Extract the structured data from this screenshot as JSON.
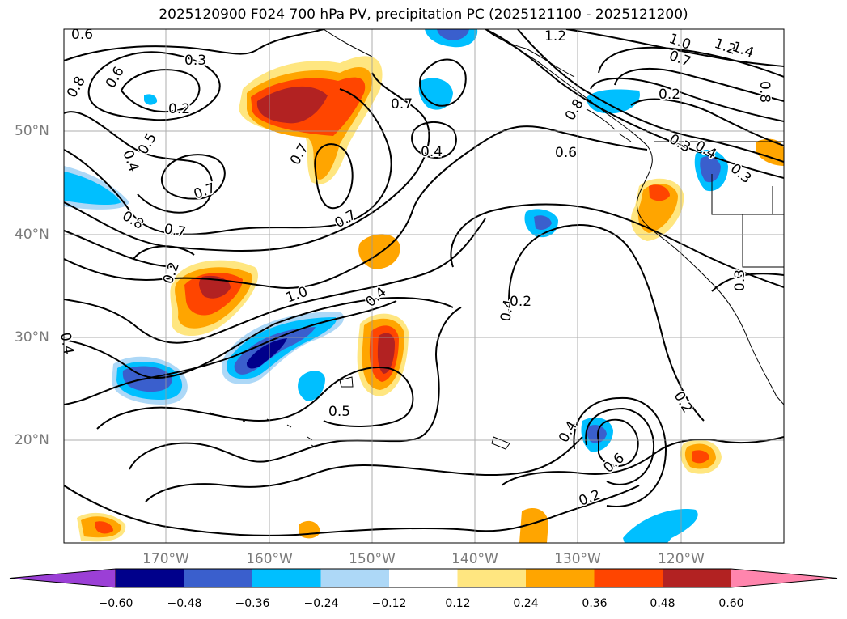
{
  "title": "2025120900 F024 700 hPa PV, precipitation PC (2025121100 - 2025121200)",
  "lat_labels": [
    "50°N",
    "40°N",
    "30°N",
    "20°N"
  ],
  "lon_labels": [
    "170°W",
    "160°W",
    "150°W",
    "140°W",
    "130°W",
    "120°W"
  ],
  "contour_labels": [
    "0.6",
    "0.3",
    "0.8",
    "0.6",
    "0.2",
    "0.4",
    "0.5",
    "0.7",
    "0.7",
    "0.8",
    "0.7",
    "0.7",
    "0.7",
    "0.4",
    "0.6",
    "0.8",
    "1.2",
    "1.0",
    "0.7",
    "1.2",
    "1.4",
    "0.8",
    "0.2",
    "0.3",
    "0.4",
    "0.3",
    "0.2",
    "1.0",
    "0.4",
    "0.4",
    "0.2",
    "0.2",
    "0.5",
    "0.2",
    "0.4",
    "0.6",
    "0.3",
    "0.4"
  ],
  "colorbar": {
    "ticks": [
      "−0.60",
      "−0.48",
      "−0.36",
      "−0.24",
      "−0.12",
      "0.12",
      "0.24",
      "0.36",
      "0.48",
      "0.60"
    ],
    "colors": [
      "#9b3fd6",
      "#00008b",
      "#3a5fcd",
      "#00bfff",
      "#add8f7",
      "#ffffff",
      "#ffe680",
      "#ffa500",
      "#ff4500",
      "#b22222",
      "#ff85ad"
    ]
  },
  "colors": {
    "land_outline": "#000000",
    "grid": "#999999",
    "contour": "#000000",
    "axis_label": "#7a7a7a"
  }
}
